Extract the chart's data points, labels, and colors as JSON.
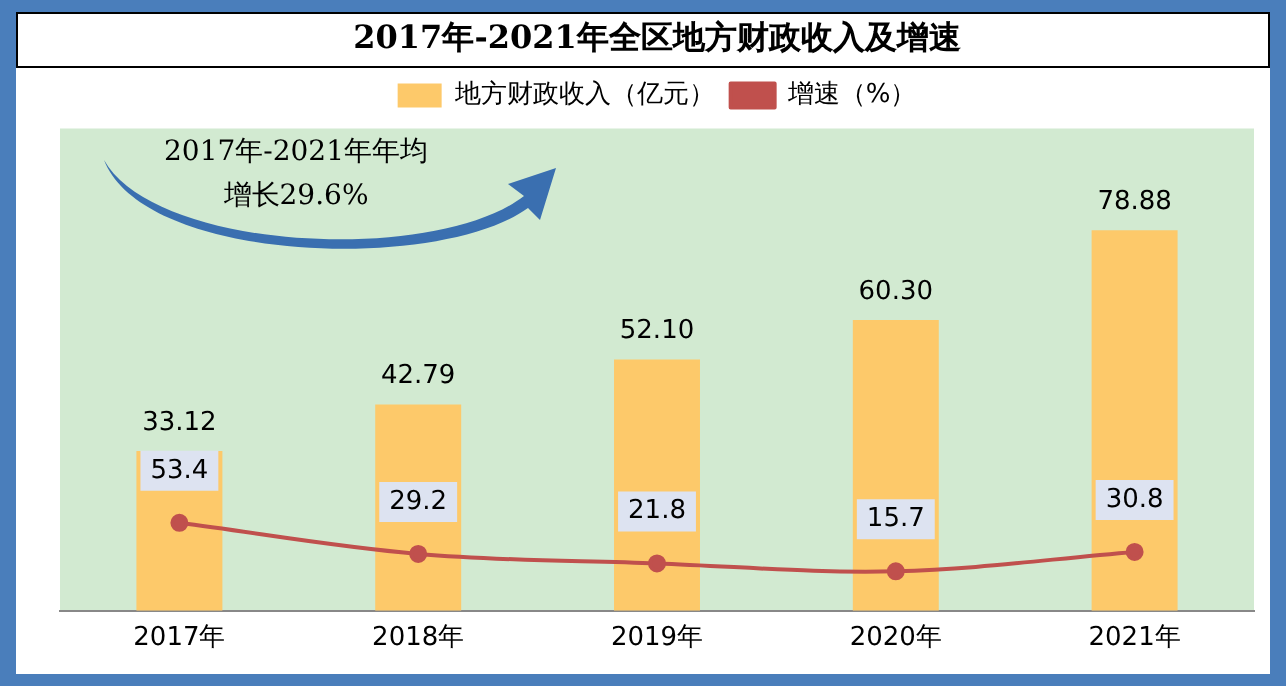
{
  "chart_data": {
    "type": "bar",
    "title": "2017年-2021年全区地方财政收入及增速",
    "categories": [
      "2017年",
      "2018年",
      "2019年",
      "2020年",
      "2021年"
    ],
    "series": [
      {
        "name": "地方财政收入（亿元）",
        "color": "#fdc96a",
        "values": [
          33.12,
          42.79,
          52.1,
          60.3,
          78.88
        ],
        "value_labels": [
          "33.12",
          "42.79",
          "52.10",
          "60.30",
          "78.88"
        ]
      },
      {
        "name": "增速（%）",
        "type": "line",
        "axis": "y2",
        "color": "#c0504d",
        "values": [
          53.4,
          29.2,
          21.8,
          15.7,
          30.8
        ],
        "value_labels": [
          "53.4",
          "29.2",
          "21.8",
          "15.7",
          "30.8"
        ]
      }
    ],
    "ylim": [
      0,
      100
    ],
    "y2lim": [
      -15,
      360
    ],
    "tick_labels": "x",
    "grid": false,
    "legend": "top",
    "marker": "circle",
    "line_style": "solid",
    "annotations": [
      "2017年-2021年年均",
      "增长29.6%"
    ]
  }
}
